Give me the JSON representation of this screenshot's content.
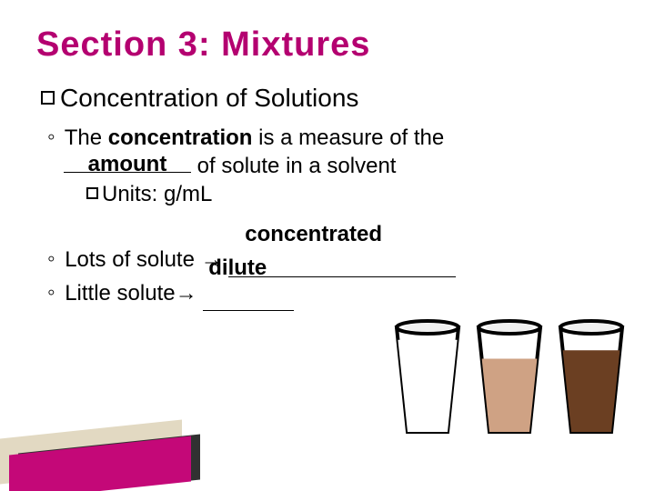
{
  "title": "Section 3: Mixtures",
  "heading": "Concentration of Solutions",
  "line1_pre": "The ",
  "line1_bold": "concentration",
  "line1_post": " is a measure of the",
  "blank_amount": "amount",
  "line2_post": " of solute in a solvent",
  "units_label": "Units: g/mL",
  "lots_pre": "Lots of solute ",
  "arrow": "→",
  "lots_fill": "concentrated",
  "little_pre": "Little solute",
  "little_fill": "dilute",
  "colors": {
    "title": "#b40070",
    "accent": "#c40878",
    "cup_outline": "#000000",
    "cup_inner": "#ffffff",
    "fill_light": "#cfa284",
    "fill_dark": "#6b3f22"
  },
  "cups": [
    {
      "fill_height": 0.88,
      "color": "#ffffff"
    },
    {
      "fill_height": 0.7,
      "color": "#cfa284"
    },
    {
      "fill_height": 0.78,
      "color": "#6b3f22"
    }
  ]
}
